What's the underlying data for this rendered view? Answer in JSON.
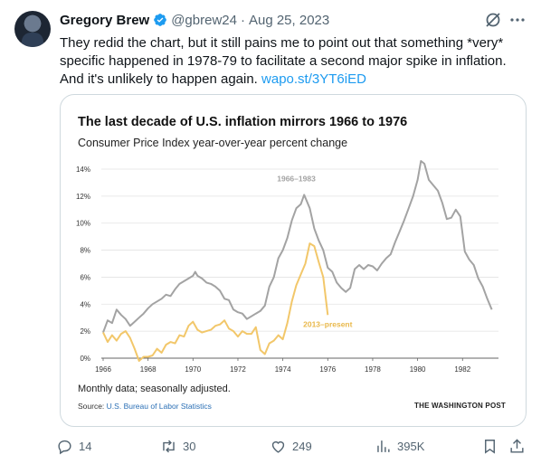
{
  "tweet": {
    "author_name": "Gregory Brew",
    "handle": "@gbrew24",
    "separator": "·",
    "date": "Aug 25, 2023",
    "text": "They redid the chart, but it still pains me to point out that something *very* specific happened in 1978-79 to facilitate a second major spike in inflation. And it's unlikely to happen again.",
    "link_text": "wapo.st/3YT6iED"
  },
  "card": {
    "title": "The last decade of U.S. inflation mirrors 1966 to 1976",
    "subtitle": "Consumer Price Index year-over-year percent change",
    "note": "Monthly data; seasonally adjusted.",
    "source_label": "Source:",
    "source_name": "U.S. Bureau of Labor Statistics",
    "publisher": "THE WASHINGTON POST"
  },
  "actions": {
    "replies": "14",
    "reposts": "30",
    "likes": "249",
    "views": "395K"
  },
  "icons": [
    "verified-badge-icon",
    "grok-icon",
    "more-icon",
    "reply-icon",
    "repost-icon",
    "like-icon",
    "views-icon",
    "bookmark-icon",
    "share-icon"
  ],
  "colors": {
    "link": "#1d9bf0",
    "series_1966": "#a3a3a3",
    "series_2013": "#f2c76a",
    "verified": "#1d9bf0"
  },
  "chart_data": {
    "type": "line",
    "title": "The last decade of U.S. inflation mirrors 1966 to 1976",
    "subtitle": "Consumer Price Index year-over-year percent change",
    "x_tick_labels": [
      "1966",
      "1968",
      "1970",
      "1972",
      "1974",
      "1976",
      "1978",
      "1980",
      "1982"
    ],
    "y_tick_labels": [
      "0%",
      "2%",
      "4%",
      "6%",
      "8%",
      "10%",
      "12%",
      "14%"
    ],
    "xlim": [
      1966,
      1983.6
    ],
    "ylim": [
      0,
      14
    ],
    "grid": true,
    "series": [
      {
        "name": "1966–1983",
        "color": "#a3a3a3",
        "x": [
          1966.0,
          1966.2,
          1966.4,
          1966.6,
          1966.8,
          1967.0,
          1967.2,
          1967.4,
          1967.6,
          1967.8,
          1968.0,
          1968.2,
          1968.4,
          1968.6,
          1968.8,
          1969.0,
          1969.2,
          1969.4,
          1969.6,
          1969.8,
          1970.0,
          1970.1,
          1970.2,
          1970.4,
          1970.6,
          1970.8,
          1971.0,
          1971.2,
          1971.4,
          1971.6,
          1971.8,
          1972.0,
          1972.2,
          1972.4,
          1972.6,
          1972.8,
          1973.0,
          1973.2,
          1973.4,
          1973.6,
          1973.8,
          1974.0,
          1974.2,
          1974.4,
          1974.6,
          1974.8,
          1974.95,
          1975.2,
          1975.4,
          1975.6,
          1975.8,
          1976.0,
          1976.2,
          1976.4,
          1976.6,
          1976.8,
          1977.0,
          1977.2,
          1977.4,
          1977.6,
          1977.8,
          1978.0,
          1978.2,
          1978.4,
          1978.6,
          1978.8,
          1979.0,
          1979.2,
          1979.4,
          1979.6,
          1979.8,
          1980.0,
          1980.15,
          1980.3,
          1980.5,
          1980.7,
          1980.9,
          1981.1,
          1981.3,
          1981.5,
          1981.7,
          1981.9,
          1982.1,
          1982.3,
          1982.5,
          1982.7,
          1982.9,
          1983.1,
          1983.3
        ],
        "y": [
          1.9,
          2.8,
          2.6,
          3.6,
          3.2,
          2.9,
          2.4,
          2.7,
          3.0,
          3.3,
          3.7,
          4.0,
          4.2,
          4.4,
          4.7,
          4.6,
          5.1,
          5.5,
          5.7,
          5.9,
          6.1,
          6.4,
          6.1,
          5.9,
          5.6,
          5.5,
          5.3,
          5.0,
          4.4,
          4.3,
          3.6,
          3.4,
          3.3,
          2.9,
          3.1,
          3.3,
          3.5,
          3.9,
          5.3,
          6.0,
          7.4,
          8.0,
          8.9,
          10.2,
          11.1,
          11.4,
          12.1,
          11.1,
          9.6,
          8.7,
          8.0,
          6.7,
          6.4,
          5.6,
          5.2,
          4.9,
          5.2,
          6.6,
          6.9,
          6.6,
          6.9,
          6.8,
          6.5,
          7.0,
          7.4,
          7.7,
          8.6,
          9.4,
          10.2,
          11.1,
          12.0,
          13.2,
          14.6,
          14.4,
          13.2,
          12.8,
          12.4,
          11.5,
          10.3,
          10.4,
          11.0,
          10.5,
          7.9,
          7.3,
          6.9,
          5.9,
          5.3,
          4.4,
          3.6
        ]
      },
      {
        "name": "2013–present",
        "color": "#f2c76a",
        "x": [
          1966.0,
          1966.2,
          1966.4,
          1966.6,
          1966.8,
          1967.0,
          1967.2,
          1967.4,
          1967.6,
          1967.8,
          1968.0,
          1968.2,
          1968.4,
          1968.6,
          1968.8,
          1969.0,
          1969.2,
          1969.4,
          1969.6,
          1969.8,
          1970.0,
          1970.2,
          1970.4,
          1970.6,
          1970.8,
          1971.0,
          1971.2,
          1971.4,
          1971.6,
          1971.8,
          1972.0,
          1972.2,
          1972.4,
          1972.6,
          1972.8,
          1973.0,
          1973.2,
          1973.4,
          1973.6,
          1973.8,
          1974.0,
          1974.2,
          1974.4,
          1974.6,
          1974.8,
          1975.0,
          1975.2,
          1975.4,
          1975.6,
          1975.8,
          1976.0
        ],
        "y": [
          1.9,
          1.2,
          1.7,
          1.3,
          1.8,
          2.0,
          1.5,
          0.7,
          -0.2,
          0.1,
          0.1,
          0.2,
          0.7,
          0.4,
          1.0,
          1.2,
          1.1,
          1.7,
          1.6,
          2.4,
          2.7,
          2.1,
          1.9,
          2.0,
          2.1,
          2.4,
          2.5,
          2.8,
          2.2,
          2.0,
          1.6,
          2.0,
          1.8,
          1.8,
          2.3,
          0.6,
          0.3,
          1.1,
          1.3,
          1.7,
          1.4,
          2.6,
          4.2,
          5.4,
          6.2,
          7.0,
          8.5,
          8.3,
          7.1,
          6.0,
          3.2
        ]
      }
    ],
    "annotations": [
      "1966–1983",
      "2013–present"
    ]
  }
}
